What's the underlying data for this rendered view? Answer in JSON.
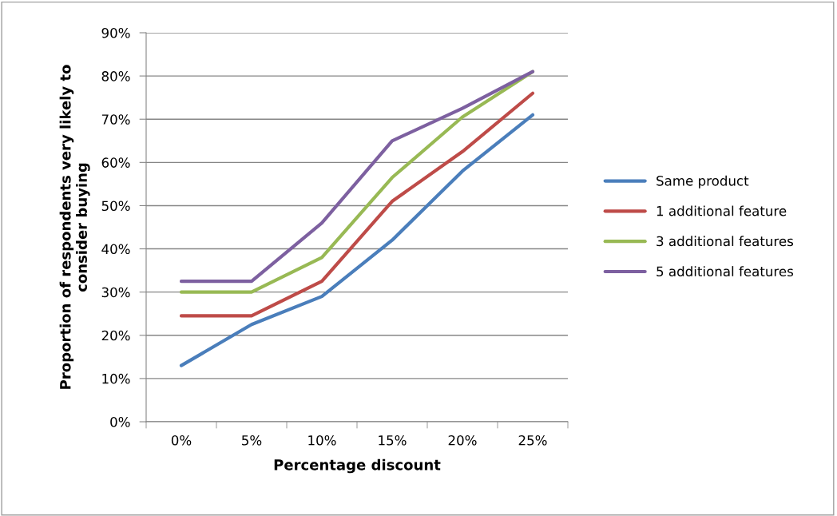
{
  "chart_data": {
    "type": "line",
    "xlabel": "Percentage discount",
    "ylabel": "Proportion of respondents very likely to\nconsider buying",
    "categories": [
      "0%",
      "5%",
      "10%",
      "15%",
      "20%",
      "25%"
    ],
    "series": [
      {
        "name": "Same product",
        "color": "#4a7ebb",
        "values": [
          13,
          22.5,
          29,
          42,
          58,
          71
        ]
      },
      {
        "name": "1 additional feature",
        "color": "#be4b48",
        "values": [
          24.5,
          24.5,
          32.5,
          51,
          62.5,
          76
        ]
      },
      {
        "name": "3 additional features",
        "color": "#98b954",
        "values": [
          30,
          30,
          38,
          56.5,
          70.5,
          81
        ]
      },
      {
        "name": "5 additional features",
        "color": "#7d60a0",
        "values": [
          32.5,
          32.5,
          46,
          65,
          72.5,
          81
        ]
      }
    ],
    "ylim": [
      0,
      90
    ],
    "yticks": [
      {
        "value": 0,
        "label": "0%"
      },
      {
        "value": 10,
        "label": "10%"
      },
      {
        "value": 20,
        "label": "20%"
      },
      {
        "value": 30,
        "label": "30%"
      },
      {
        "value": 40,
        "label": "40%"
      },
      {
        "value": 50,
        "label": "50%"
      },
      {
        "value": 60,
        "label": "60%"
      },
      {
        "value": 70,
        "label": "70%"
      },
      {
        "value": 80,
        "label": "80%"
      },
      {
        "value": 90,
        "label": "90%"
      }
    ],
    "grid": "y",
    "legend": "right",
    "marker": "none",
    "line_style": "solid"
  }
}
